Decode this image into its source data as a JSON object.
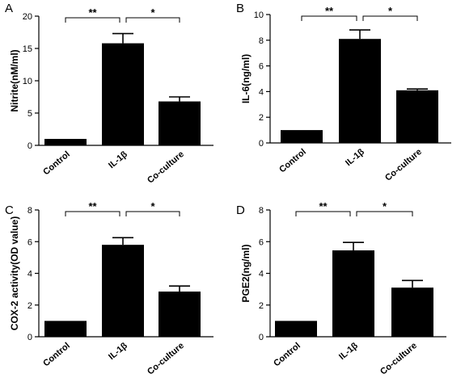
{
  "chart_data": [
    {
      "type": "bar",
      "panel": "A",
      "ylabel": "Nitrite(nM/ml)",
      "ylim": [
        0,
        20
      ],
      "yticks": [
        0,
        5,
        10,
        15,
        20
      ],
      "categories": [
        "Control",
        "IL-1β",
        "Co-culture"
      ],
      "values": [
        1.0,
        15.8,
        6.8
      ],
      "errors": [
        0,
        1.5,
        0.7
      ],
      "grid": false,
      "legend": "none",
      "significance": [
        {
          "from": 0,
          "to": 1,
          "label": "**"
        },
        {
          "from": 1,
          "to": 2,
          "label": "*"
        }
      ]
    },
    {
      "type": "bar",
      "panel": "B",
      "ylabel": "IL-6(ng/ml)",
      "ylim": [
        0,
        10
      ],
      "yticks": [
        0,
        2,
        4,
        6,
        8,
        10
      ],
      "categories": [
        "Control",
        "IL-1β",
        "Co-culture"
      ],
      "values": [
        1.0,
        8.1,
        4.1
      ],
      "errors": [
        0,
        0.7,
        0.1
      ],
      "grid": false,
      "legend": "none",
      "significance": [
        {
          "from": 0,
          "to": 1,
          "label": "**"
        },
        {
          "from": 1,
          "to": 2,
          "label": "*"
        }
      ]
    },
    {
      "type": "bar",
      "panel": "C",
      "ylabel": "COX-2 activity(OD value)",
      "ylim": [
        0,
        8
      ],
      "yticks": [
        0,
        2,
        4,
        6,
        8
      ],
      "categories": [
        "Control",
        "IL-1β",
        "Co-culture"
      ],
      "values": [
        1.0,
        5.8,
        2.85
      ],
      "errors": [
        0,
        0.45,
        0.35
      ],
      "grid": false,
      "legend": "none",
      "significance": [
        {
          "from": 0,
          "to": 1,
          "label": "**"
        },
        {
          "from": 1,
          "to": 2,
          "label": "*"
        }
      ]
    },
    {
      "type": "bar",
      "panel": "D",
      "ylabel": "PGE2(ng/ml)",
      "ylim": [
        0,
        8
      ],
      "yticks": [
        0,
        2,
        4,
        6,
        8
      ],
      "categories": [
        "Control",
        "IL-1β",
        "Co-culture"
      ],
      "values": [
        1.0,
        5.45,
        3.1
      ],
      "errors": [
        0,
        0.5,
        0.45
      ],
      "grid": false,
      "legend": "none",
      "significance": [
        {
          "from": 0,
          "to": 1,
          "label": "**"
        },
        {
          "from": 1,
          "to": 2,
          "label": "*"
        }
      ]
    }
  ]
}
